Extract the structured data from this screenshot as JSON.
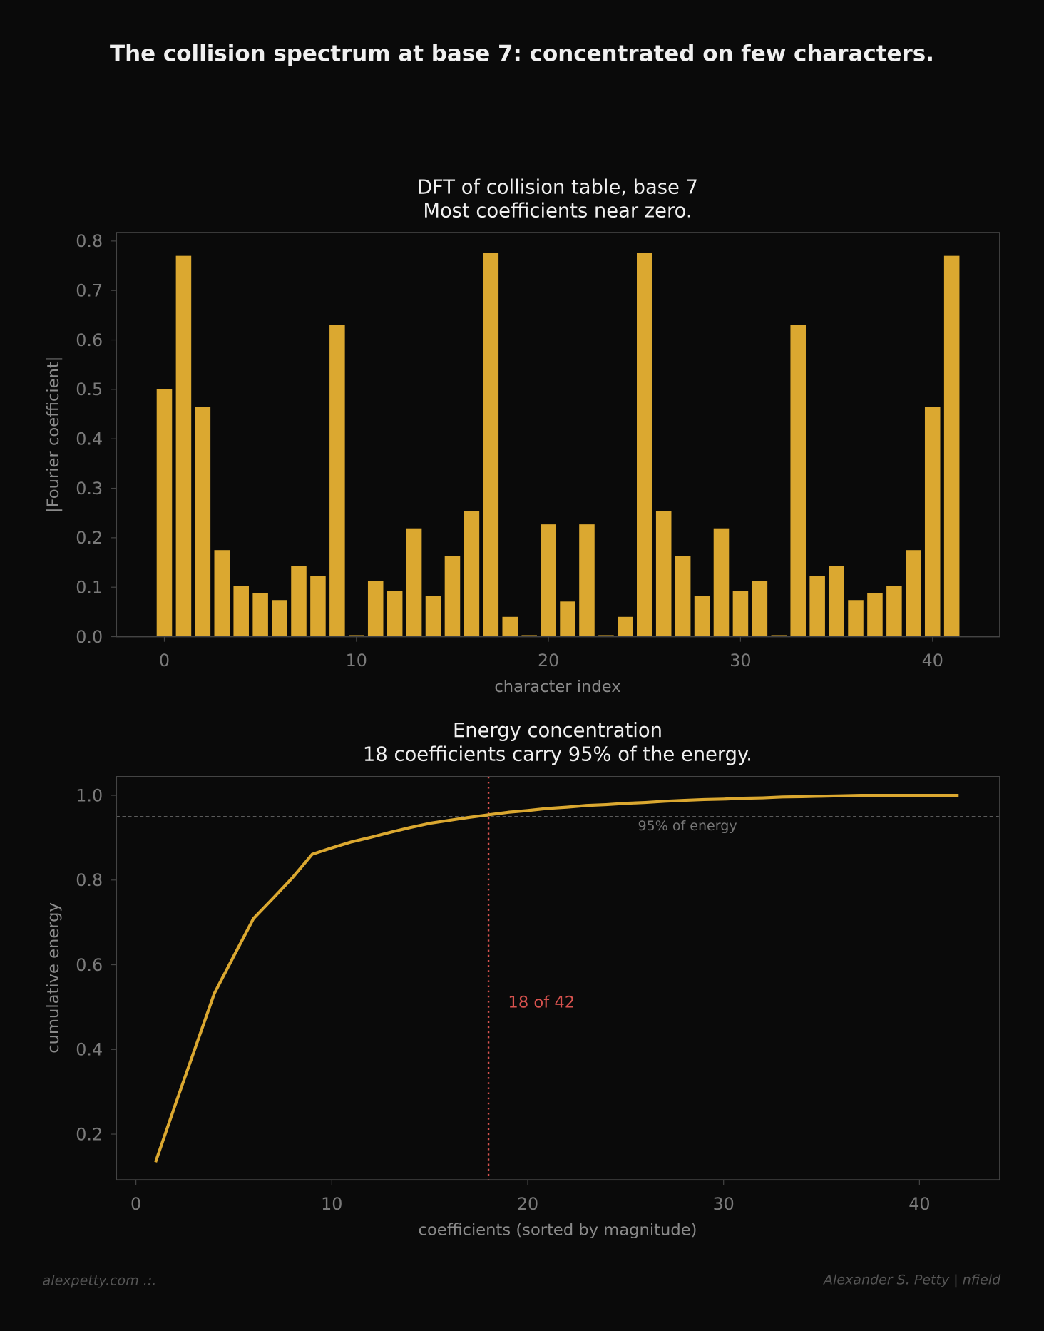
{
  "title": "The collision spectrum at base 7: concentrated on few characters.",
  "colors": {
    "background": "#0a0a0a",
    "bar": "#dba830",
    "line": "#dba830",
    "marker": "#d9534f",
    "axes": "#444444",
    "text": "#f0f0f0"
  },
  "footer": {
    "left": "alexpetty.com  .:.",
    "right": "Alexander S. Petty  |  nfield"
  },
  "chart_data": [
    {
      "type": "bar",
      "title": "DFT of collision table, base 7",
      "subtitle": "Most coefficients near zero.",
      "xlabel": "character index",
      "ylabel": "|Fourier coefficient|",
      "xlim": [
        -2.5,
        43.5
      ],
      "ylim": [
        0,
        0.817
      ],
      "xticks": [
        0,
        10,
        20,
        30,
        40
      ],
      "yticks": [
        0.0,
        0.1,
        0.2,
        0.3,
        0.4,
        0.5,
        0.6,
        0.7,
        0.8
      ],
      "x": [
        0,
        1,
        2,
        3,
        4,
        5,
        6,
        7,
        8,
        9,
        10,
        11,
        12,
        13,
        14,
        15,
        16,
        17,
        18,
        19,
        20,
        21,
        22,
        23,
        24,
        25,
        26,
        27,
        28,
        29,
        30,
        31,
        32,
        33,
        34,
        35,
        36,
        37,
        38,
        39,
        40,
        41
      ],
      "values": [
        0.5,
        0.77,
        0.465,
        0.175,
        0.103,
        0.088,
        0.074,
        0.143,
        0.122,
        0.63,
        0.003,
        0.112,
        0.092,
        0.219,
        0.082,
        0.163,
        0.254,
        0.776,
        0.04,
        0.003,
        0.227,
        0.071,
        0.227,
        0.003,
        0.04,
        0.776,
        0.254,
        0.163,
        0.082,
        0.219,
        0.092,
        0.112,
        0.003,
        0.63,
        0.122,
        0.143,
        0.074,
        0.088,
        0.103,
        0.175,
        0.465,
        0.77
      ],
      "grid": false
    },
    {
      "type": "line",
      "title": "Energy concentration",
      "subtitle": "18 coefficients carry 95% of the energy.",
      "xlabel": "coefficients (sorted by magnitude)",
      "ylabel": "cumulative energy",
      "xlim": [
        -1,
        44.1
      ],
      "ylim": [
        0.092,
        1.044
      ],
      "xticks": [
        0,
        10,
        20,
        30,
        40
      ],
      "yticks": [
        0.2,
        0.4,
        0.6,
        0.8,
        1.0
      ],
      "x": [
        1,
        2,
        3,
        4,
        5,
        6,
        7,
        8,
        9,
        10,
        11,
        12,
        13,
        14,
        15,
        16,
        17,
        18,
        19,
        20,
        21,
        22,
        23,
        24,
        25,
        26,
        27,
        28,
        29,
        30,
        31,
        32,
        33,
        34,
        35,
        36,
        37,
        38,
        39,
        40,
        41,
        42
      ],
      "y": [
        0.134,
        0.268,
        0.4,
        0.532,
        0.621,
        0.709,
        0.757,
        0.806,
        0.861,
        0.876,
        0.89,
        0.901,
        0.913,
        0.924,
        0.934,
        0.941,
        0.948,
        0.954,
        0.96,
        0.964,
        0.969,
        0.972,
        0.976,
        0.978,
        0.981,
        0.983,
        0.986,
        0.988,
        0.99,
        0.991,
        0.993,
        0.994,
        0.996,
        0.997,
        0.998,
        0.999,
        1.0,
        1.0,
        1.0,
        1.0,
        1.0,
        1.0
      ],
      "threshold": {
        "y": 0.95,
        "label": "95% of energy"
      },
      "marker": {
        "x": 18,
        "label": "18 of 42"
      },
      "grid": false
    }
  ]
}
